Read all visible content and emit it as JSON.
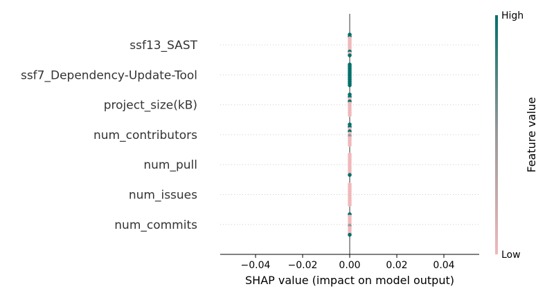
{
  "chart_data": {
    "type": "scatter",
    "subtype": "shap-beeswarm",
    "title": "",
    "xlabel": "SHAP value (impact on model output)",
    "ylabel": "",
    "xlim": [
      -0.055,
      0.055
    ],
    "xticks": [
      -0.04,
      -0.02,
      0.0,
      0.02,
      0.04
    ],
    "xtick_labels": [
      "−0.04",
      "−0.02",
      "0.00",
      "0.02",
      "0.04"
    ],
    "grid": false,
    "features": [
      {
        "name": "ssf13_SAST",
        "shap_values": [
          0,
          0,
          0,
          0,
          0,
          0,
          0,
          0,
          0,
          0,
          0,
          0
        ],
        "feature_values": [
          1,
          1,
          0,
          0,
          0,
          0,
          0,
          0,
          0,
          1,
          0,
          1
        ]
      },
      {
        "name": "ssf7_Dependency-Update-Tool",
        "shap_values": [
          0,
          0,
          0,
          0,
          0,
          0,
          0,
          0,
          0,
          0,
          0,
          0
        ],
        "feature_values": [
          1,
          1,
          1,
          1,
          1,
          1,
          1,
          1,
          1,
          1,
          1,
          1
        ]
      },
      {
        "name": "project_size(kB)",
        "shap_values": [
          0,
          0,
          0,
          0,
          0,
          0,
          0,
          0,
          0,
          0
        ],
        "feature_values": [
          1,
          1,
          0,
          1,
          0,
          0,
          0,
          0,
          0,
          0
        ]
      },
      {
        "name": "num_contributors",
        "shap_values": [
          0,
          0,
          0,
          0,
          0,
          0,
          0,
          0,
          0,
          0
        ],
        "feature_values": [
          1,
          1,
          0,
          1,
          0,
          0.5,
          0,
          0,
          0,
          0
        ]
      },
      {
        "name": "num_pull",
        "shap_values": [
          0,
          0,
          0,
          0,
          0,
          0,
          0,
          0,
          0,
          0
        ],
        "feature_values": [
          0,
          0,
          0,
          0,
          0,
          0,
          0,
          0,
          0,
          1
        ]
      },
      {
        "name": "num_issues",
        "shap_values": [
          0,
          0,
          0,
          0,
          0,
          0,
          0,
          0,
          0,
          0
        ],
        "feature_values": [
          0,
          0,
          0,
          0,
          0,
          0,
          0,
          0,
          0,
          0
        ]
      },
      {
        "name": "num_commits",
        "shap_values": [
          0,
          0,
          0,
          0,
          0,
          0,
          0,
          0,
          0,
          0
        ],
        "feature_values": [
          1,
          0,
          0,
          0,
          0,
          0.5,
          0,
          0,
          0,
          1
        ]
      }
    ],
    "colorbar": {
      "label": "Feature value",
      "high_label": "High",
      "low_label": "Low",
      "high_color": "#00706a",
      "mid_color": "#999999",
      "low_color": "#f0b8bb"
    },
    "zero_line_color": "#999999"
  }
}
